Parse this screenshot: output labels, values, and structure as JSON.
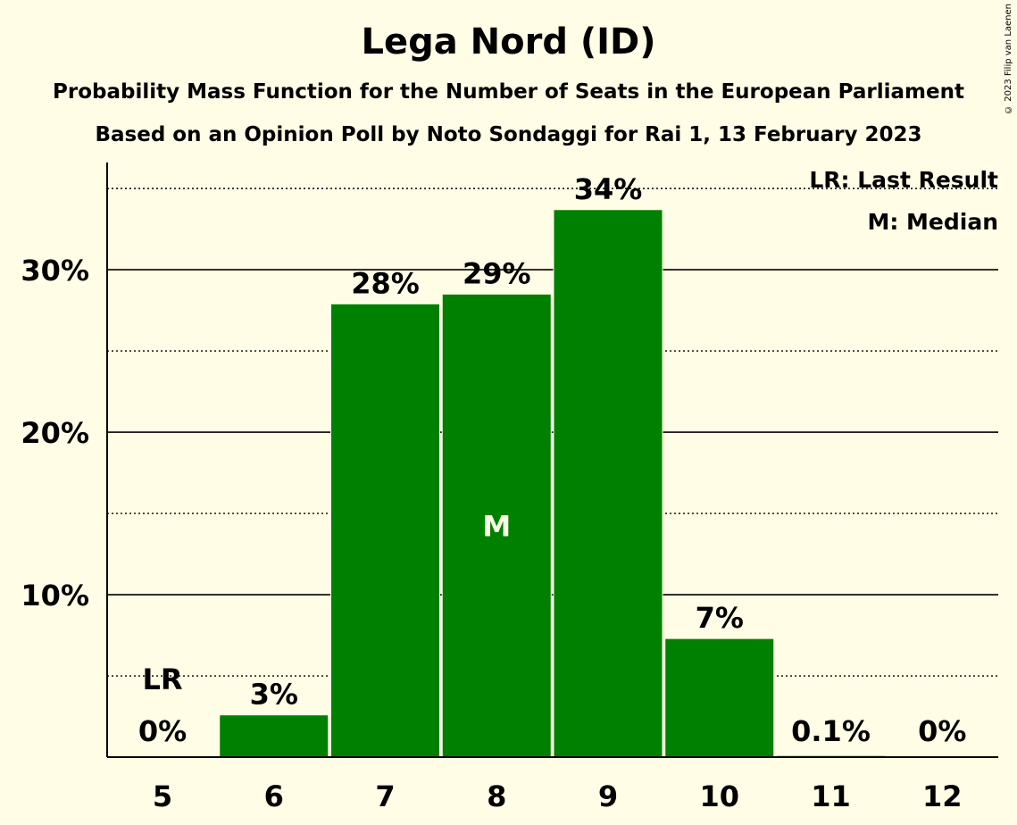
{
  "title": "Lega Nord (ID)",
  "subtitle": "Probability Mass Function for the Number of Seats in the European Parliament",
  "subtitle2": "Based on an Opinion Poll by Noto Sondaggi for Rai 1, 13 February 2023",
  "copyright": "© 2023 Filip van Laenen",
  "legend": {
    "last_result": "LR: Last Result",
    "median": "M: Median"
  },
  "colors": {
    "bar": "#008000",
    "background": "#fffde5",
    "text": "#000000"
  },
  "chart_data": {
    "type": "bar",
    "categories": [
      "5",
      "6",
      "7",
      "8",
      "9",
      "10",
      "11",
      "12"
    ],
    "values": [
      0,
      2.6,
      27.9,
      28.5,
      33.7,
      7.3,
      0.1,
      0
    ],
    "data_labels": [
      "0%",
      "3%",
      "28%",
      "29%",
      "34%",
      "7%",
      "0.1%",
      "0%"
    ],
    "y_ticks": [
      10,
      20,
      30
    ],
    "y_tick_labels": [
      "10%",
      "20%",
      "30%"
    ],
    "ylim": [
      0,
      36.6
    ],
    "grid": true,
    "last_result_category": "5",
    "last_result_label": "LR",
    "median_category": "8",
    "median_label": "M",
    "legend_position": "top-right"
  }
}
